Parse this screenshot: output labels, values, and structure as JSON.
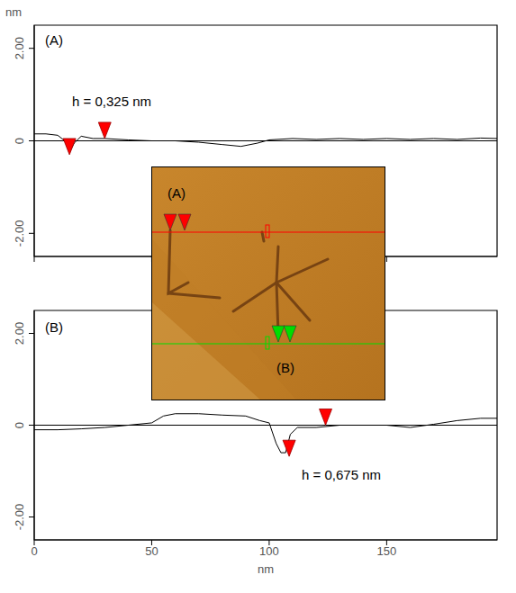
{
  "y_unit": "nm",
  "chart_data": [
    {
      "type": "line",
      "title": "(A)",
      "x": [
        0,
        5,
        10,
        13,
        15,
        17,
        20,
        25,
        30,
        40,
        50,
        60,
        70,
        80,
        88,
        95,
        100,
        110,
        120,
        130,
        140,
        150,
        160,
        170,
        180,
        190,
        197
      ],
      "values": [
        0.15,
        0.15,
        0.12,
        0.0,
        -0.25,
        -0.05,
        0.1,
        0.05,
        0.05,
        0.02,
        0.0,
        0.0,
        -0.03,
        -0.08,
        -0.12,
        -0.05,
        0.02,
        0.05,
        0.03,
        0.05,
        0.03,
        0.05,
        0.03,
        0.05,
        0.03,
        0.06,
        0.05
      ],
      "color": "#000000",
      "xlim": [
        0,
        197
      ],
      "ylim": [
        -2.5,
        2.5
      ],
      "xticks": [
        0,
        50,
        100,
        150
      ],
      "yticks": [
        {
          "value": -2,
          "label": "-2.00"
        },
        0,
        {
          "value": 2,
          "label": "2.00"
        }
      ],
      "tick_labels": "y",
      "annotations": [
        "h = 0,325 nm"
      ],
      "markers": {
        "x": [
          15,
          30
        ],
        "y": [
          -0.3,
          0.05
        ],
        "color": "#ff0000"
      }
    },
    {
      "type": "line",
      "title": "(B)",
      "x_label": "nm",
      "x": [
        0,
        10,
        20,
        30,
        40,
        50,
        55,
        60,
        70,
        80,
        90,
        96,
        100,
        103,
        105,
        107,
        109,
        112,
        120,
        130,
        140,
        150,
        160,
        170,
        180,
        190,
        197
      ],
      "values": [
        -0.1,
        -0.1,
        -0.08,
        -0.05,
        0.0,
        0.05,
        0.2,
        0.25,
        0.25,
        0.22,
        0.2,
        0.1,
        0.05,
        -0.4,
        -0.6,
        -0.6,
        -0.2,
        -0.05,
        -0.05,
        0.0,
        0.0,
        0.0,
        -0.05,
        0.02,
        0.1,
        0.15,
        0.15
      ],
      "color": "#000000",
      "xlim": [
        0,
        197
      ],
      "ylim": [
        -2.5,
        2.5
      ],
      "xticks": [
        0,
        50,
        100,
        150
      ],
      "yticks": [
        {
          "value": -2,
          "label": "-2.00"
        },
        0,
        {
          "value": 2,
          "label": "2.00"
        }
      ],
      "tick_labels": true,
      "annotations": [
        "h = 0,675 nm"
      ],
      "markers": {
        "x": [
          108.5,
          124
        ],
        "y": [
          -0.68,
          0.0
        ],
        "color": "#ff0000"
      }
    }
  ],
  "inset": {
    "labels": [
      "(A)",
      "(B)"
    ],
    "line_colors": [
      "#ff0000",
      "#00dd00"
    ]
  }
}
